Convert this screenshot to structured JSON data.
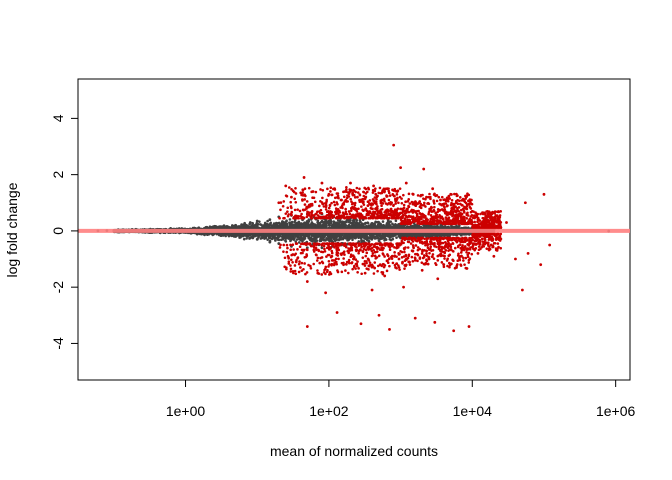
{
  "chart_data": {
    "type": "scatter",
    "title": "",
    "xlabel": "mean of normalized counts",
    "ylabel": "log fold change",
    "x_scale": "log10",
    "xlim": [
      "1e-01.5",
      "1e+06.2"
    ],
    "x_range_log10": [
      -1.5,
      6.2
    ],
    "ylim": [
      -5.3,
      5.4
    ],
    "x_ticks": [
      {
        "value": 1,
        "label": "1e+00"
      },
      {
        "value": 100,
        "label": "1e+02"
      },
      {
        "value": 10000,
        "label": "1e+04"
      },
      {
        "value": 1000000,
        "label": "1e+06"
      }
    ],
    "y_ticks": [
      {
        "value": -4,
        "label": "-4"
      },
      {
        "value": -2,
        "label": "-2"
      },
      {
        "value": 0,
        "label": "0"
      },
      {
        "value": 2,
        "label": "2"
      },
      {
        "value": 4,
        "label": "4"
      }
    ],
    "grid": false,
    "legend": "none",
    "reference_line": {
      "y": 0,
      "color": "#ff7f7f"
    },
    "colors": {
      "not_significant": "#404040",
      "significant": "#cc0000"
    },
    "series": [
      {
        "values_description_none": "",
        "color": "#404040",
        "points": [
          [
            0.06,
            0.0
          ],
          [
            0.08,
            0.01
          ],
          [
            0.1,
            -0.01
          ],
          [
            0.12,
            0.02
          ],
          [
            0.15,
            0.0
          ],
          [
            0.2,
            -0.02
          ],
          [
            0.3,
            0.03
          ],
          [
            0.5,
            -0.03
          ],
          [
            0.7,
            0.04
          ],
          [
            1,
            0.05
          ],
          [
            1,
            -0.05
          ],
          [
            1.5,
            0.08
          ],
          [
            1.5,
            -0.07
          ],
          [
            2,
            0.1
          ],
          [
            2,
            -0.12
          ],
          [
            3,
            0.15
          ],
          [
            3,
            -0.14
          ],
          [
            5,
            0.2
          ],
          [
            5,
            -0.2
          ],
          [
            8,
            0.3
          ],
          [
            8,
            -0.25
          ],
          [
            10,
            0.35
          ],
          [
            10,
            -0.3
          ],
          [
            15,
            0.4
          ],
          [
            15,
            -0.4
          ],
          [
            20,
            0.5
          ],
          [
            20,
            -0.45
          ],
          [
            30,
            0.55
          ],
          [
            30,
            -0.55
          ],
          [
            50,
            0.6
          ],
          [
            50,
            -0.6
          ],
          [
            80,
            0.6
          ],
          [
            80,
            -0.6
          ],
          [
            100,
            0.55
          ],
          [
            100,
            -0.6
          ],
          [
            150,
            0.5
          ],
          [
            150,
            -0.5
          ],
          [
            200,
            0.45
          ],
          [
            200,
            -0.45
          ],
          [
            300,
            0.4
          ],
          [
            300,
            -0.4
          ],
          [
            500,
            0.3
          ],
          [
            500,
            -0.35
          ],
          [
            1000,
            0.25
          ],
          [
            1000,
            -0.25
          ],
          [
            3000,
            0.15
          ],
          [
            3000,
            -0.15
          ],
          [
            10000,
            0.1
          ],
          [
            10000,
            -0.1
          ],
          [
            20000,
            0.05
          ],
          [
            20000,
            -0.05
          ],
          [
            800000,
            -0.01
          ]
        ]
      },
      {
        "color": "#cc0000",
        "points": [
          [
            20,
            1.0
          ],
          [
            25,
            1.6
          ],
          [
            30,
            1.2
          ],
          [
            35,
            -1.1
          ],
          [
            40,
            -1.3
          ],
          [
            45,
            1.9
          ],
          [
            50,
            -1.8
          ],
          [
            50,
            -3.4
          ],
          [
            60,
            1.4
          ],
          [
            70,
            -1.5
          ],
          [
            80,
            1.7
          ],
          [
            90,
            -2.2
          ],
          [
            100,
            1.3
          ],
          [
            110,
            -0.9
          ],
          [
            120,
            1.5
          ],
          [
            130,
            -2.9
          ],
          [
            150,
            1.1
          ],
          [
            160,
            -1.2
          ],
          [
            200,
            1.7
          ],
          [
            220,
            -1.0
          ],
          [
            250,
            1.2
          ],
          [
            280,
            -3.3
          ],
          [
            300,
            1.0
          ],
          [
            320,
            -1.5
          ],
          [
            350,
            0.9
          ],
          [
            400,
            -2.1
          ],
          [
            420,
            1.6
          ],
          [
            450,
            1.3
          ],
          [
            500,
            -3.0
          ],
          [
            520,
            -1.2
          ],
          [
            550,
            1.1
          ],
          [
            600,
            -1.6
          ],
          [
            650,
            1.5
          ],
          [
            700,
            -3.5
          ],
          [
            750,
            1.0
          ],
          [
            800,
            3.05
          ],
          [
            850,
            -1.3
          ],
          [
            900,
            1.4
          ],
          [
            950,
            -1.0
          ],
          [
            1000,
            2.25
          ],
          [
            1100,
            -2.0
          ],
          [
            1200,
            1.7
          ],
          [
            1300,
            -1.1
          ],
          [
            1500,
            1.3
          ],
          [
            1600,
            -3.1
          ],
          [
            1800,
            1.0
          ],
          [
            2000,
            -1.4
          ],
          [
            2100,
            2.2
          ],
          [
            2300,
            1.2
          ],
          [
            2500,
            -1.0
          ],
          [
            2800,
            1.5
          ],
          [
            3000,
            -3.25
          ],
          [
            3300,
            -1.7
          ],
          [
            3600,
            1.1
          ],
          [
            4000,
            -1.2
          ],
          [
            4500,
            0.9
          ],
          [
            5000,
            1.3
          ],
          [
            5500,
            -3.55
          ],
          [
            6000,
            1.0
          ],
          [
            7000,
            -0.9
          ],
          [
            8000,
            0.8
          ],
          [
            9000,
            -3.4
          ],
          [
            10000,
            0.7
          ],
          [
            12000,
            -0.8
          ],
          [
            15000,
            0.6
          ],
          [
            20000,
            -0.9
          ],
          [
            30000,
            0.3
          ],
          [
            40000,
            -1.0
          ],
          [
            50000,
            -2.1
          ],
          [
            55000,
            1.0
          ],
          [
            60000,
            -0.8
          ],
          [
            120000,
            -0.5
          ],
          [
            100000,
            1.3
          ],
          [
            90000,
            -1.2
          ]
        ]
      }
    ]
  }
}
